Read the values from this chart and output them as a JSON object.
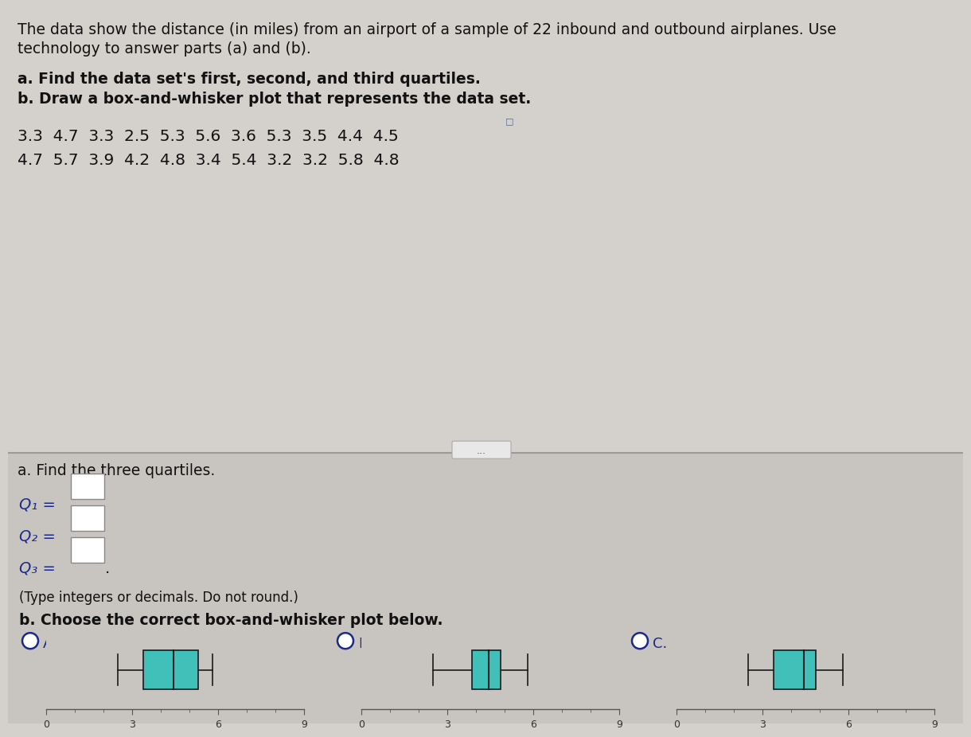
{
  "title_line1": "The data show the distance (in miles) from an airport of a sample of 22 inbound and outbound airplanes. Use",
  "title_line2": "technology to answer parts (a) and (b).",
  "part_a_header": "a. Find the data set's first, second, and third quartiles.",
  "part_b_header": "b. Draw a box-and-whisker plot that represents the data set.",
  "data_row1": "3.3  4.7  3.3  2.5  5.3  5.6  3.6  5.3  3.5  4.4  4.5",
  "data_row2": "4.7  5.7  3.9  4.2  4.8  3.4  5.4  3.2  3.2  5.8  4.8",
  "section_a_label": "a. Find the three quartiles.",
  "Q1_label": "Q₁ =",
  "Q2_label": "Q₂ =",
  "Q3_label": "Q₃ =",
  "type_note": "(Type integers or decimals. Do not round.)",
  "section_b_label": "b. Choose the correct box-and-whisker plot below.",
  "bg_upper": "#d4d0cc",
  "bg_lower": "#c8c4c0",
  "box_color": "#40c0b8",
  "box_edge_color": "#1a1a1a",
  "whisker_color": "#1a1a1a",
  "text_dark": "#111111",
  "text_blue": "#1a2a8a",
  "input_bg": "#ffffff",
  "input_edge": "#888888",
  "plot_A": {
    "min": 2.5,
    "Q1": 3.4,
    "Q2": 4.45,
    "Q3": 5.3,
    "max": 5.8
  },
  "plot_B": {
    "min": 2.5,
    "Q1": 3.85,
    "Q2": 4.45,
    "Q3": 4.85,
    "max": 5.8
  },
  "plot_C": {
    "min": 2.5,
    "Q1": 3.4,
    "Q2": 4.45,
    "Q3": 4.85,
    "max": 5.8
  },
  "xmin": 0,
  "xmax": 9,
  "xticks": [
    0,
    3,
    6,
    9
  ]
}
